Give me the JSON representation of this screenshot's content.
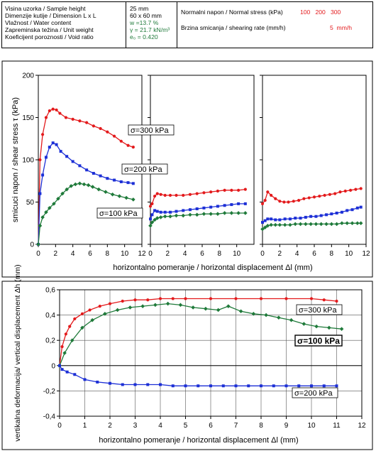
{
  "header": {
    "labels": [
      "Visina uzorka / Sample height",
      "Dimenzije kutije / Dimension L x L",
      "Vlažnost / Water content",
      "Zapreminska težina / Unit weight",
      "Koeficijent poroznosti / Void ratio"
    ],
    "values": [
      "25 mm",
      "60 x 60 mm",
      "w =13.7 %",
      "γ = 21.7 kN/m³",
      "e₀ = 0.420"
    ],
    "normal_stress_label": "Normalni napon / Normal stress (kPa)",
    "normal_stress_values": "100   200   300",
    "shear_rate_label": "Brzina smicanja / shearing rate  (mm/h)",
    "shear_rate_value": "5  mm/h"
  },
  "colors": {
    "s300": "#e31a1c",
    "s200": "#1c2fd6",
    "s100": "#1f7a3a"
  },
  "chart_data": [
    {
      "type": "line",
      "panel": "shear-stress-peak",
      "ylabel": "smicuci napon / shear stress  τ (kPa)",
      "xlabel": "horizontalno pomeranje / horizontal displacement  Δl (mm)",
      "xlim": [
        0,
        12
      ],
      "ylim": [
        0,
        200
      ],
      "xticks": [
        0,
        2,
        4,
        6,
        8,
        10,
        12
      ],
      "yticks": [
        0,
        50,
        100,
        150,
        200
      ],
      "series": [
        {
          "name": "σ=300 kPa",
          "color": "#e31a1c",
          "marker": "circle",
          "x": [
            0,
            0.2,
            0.5,
            0.9,
            1.3,
            1.7,
            2.1,
            2.5,
            3.2,
            4.0,
            4.8,
            5.6,
            6.4,
            7.2,
            8.0,
            8.8,
            9.6,
            10.4,
            11.0
          ],
          "y": [
            0,
            100,
            130,
            150,
            158,
            160,
            159,
            155,
            150,
            148,
            146,
            144,
            140,
            137,
            133,
            128,
            122,
            117,
            115
          ]
        },
        {
          "name": "σ=200 kPa",
          "color": "#1c2fd6",
          "marker": "square",
          "x": [
            0,
            0.2,
            0.5,
            0.9,
            1.3,
            1.7,
            2.1,
            2.6,
            3.3,
            4.0,
            4.8,
            5.6,
            6.4,
            7.2,
            8.0,
            8.8,
            9.6,
            10.4,
            11.0
          ],
          "y": [
            0,
            60,
            82,
            103,
            115,
            120,
            118,
            110,
            104,
            98,
            93,
            88,
            84,
            81,
            78,
            76,
            74,
            73,
            72
          ]
        },
        {
          "name": "σ=100 kPa",
          "color": "#1f7a3a",
          "marker": "diamond",
          "x": [
            0,
            0.2,
            0.5,
            0.9,
            1.3,
            1.8,
            2.3,
            2.8,
            3.3,
            3.8,
            4.3,
            4.8,
            5.3,
            5.8,
            6.3,
            7.0,
            7.8,
            8.6,
            9.4,
            10.2,
            11.0
          ],
          "y": [
            0,
            22,
            32,
            38,
            43,
            48,
            54,
            60,
            65,
            69,
            71,
            72,
            71,
            70,
            68,
            65,
            62,
            59,
            57,
            55,
            53
          ]
        }
      ],
      "annotations": [
        "σ=300 kPa",
        "σ=200 kPa",
        "σ=100 kPa"
      ]
    },
    {
      "type": "line",
      "panel": "shear-stress-middle",
      "xlim": [
        0,
        12
      ],
      "ylim": [
        0,
        200
      ],
      "xticks": [
        0,
        2,
        4,
        6,
        8,
        10
      ],
      "series": [
        {
          "name": "σ=300 kPa",
          "color": "#e31a1c",
          "marker": "circle",
          "x": [
            0,
            0.2,
            0.5,
            0.8,
            1.2,
            1.7,
            2.3,
            3.0,
            3.8,
            4.6,
            5.4,
            6.2,
            7.0,
            7.8,
            8.6,
            9.4,
            10.2,
            11.0
          ],
          "y": [
            45,
            48,
            57,
            60,
            59,
            58,
            58,
            58,
            58,
            59,
            60,
            61,
            62,
            63,
            64,
            64,
            64,
            65
          ]
        },
        {
          "name": "σ=200 kPa",
          "color": "#1c2fd6",
          "marker": "square",
          "x": [
            0,
            0.2,
            0.5,
            0.8,
            1.2,
            1.7,
            2.3,
            3.0,
            3.8,
            4.6,
            5.4,
            6.2,
            7.0,
            7.8,
            8.6,
            9.4,
            10.2,
            11.0
          ],
          "y": [
            30,
            35,
            40,
            39,
            38,
            38,
            38,
            39,
            40,
            41,
            42,
            43,
            44,
            45,
            46,
            47,
            48,
            48
          ]
        },
        {
          "name": "σ=100 kPa",
          "color": "#1f7a3a",
          "marker": "diamond",
          "x": [
            0,
            0.2,
            0.5,
            0.8,
            1.2,
            1.7,
            2.3,
            3.0,
            3.8,
            4.6,
            5.4,
            6.2,
            7.0,
            7.8,
            8.6,
            9.4,
            10.2,
            11.0
          ],
          "y": [
            22,
            26,
            29,
            31,
            32,
            33,
            33,
            34,
            34,
            35,
            35,
            36,
            36,
            36,
            37,
            37,
            37,
            37
          ]
        }
      ]
    },
    {
      "type": "line",
      "panel": "shear-stress-right",
      "xlim": [
        0,
        12
      ],
      "ylim": [
        0,
        200
      ],
      "xticks": [
        0,
        2,
        4,
        6,
        8,
        10,
        12
      ],
      "series": [
        {
          "name": "σ=300 kPa",
          "color": "#e31a1c",
          "marker": "circle",
          "x": [
            0,
            0.3,
            0.6,
            1.0,
            1.5,
            2.0,
            2.5,
            3.0,
            3.6,
            4.2,
            4.8,
            5.4,
            6.0,
            6.6,
            7.2,
            7.8,
            8.4,
            9.0,
            9.6,
            10.2,
            10.8,
            11.4
          ],
          "y": [
            48,
            52,
            62,
            58,
            54,
            51,
            50,
            50,
            51,
            52,
            54,
            55,
            56,
            57,
            58,
            59,
            60,
            62,
            63,
            64,
            65,
            66
          ]
        },
        {
          "name": "σ=200 kPa",
          "color": "#1c2fd6",
          "marker": "square",
          "x": [
            0,
            0.3,
            0.6,
            1.0,
            1.5,
            2.0,
            2.6,
            3.2,
            3.8,
            4.4,
            5.0,
            5.6,
            6.2,
            6.8,
            7.4,
            8.0,
            8.6,
            9.2,
            9.8,
            10.4,
            11.0,
            11.4
          ],
          "y": [
            26,
            28,
            30,
            30,
            29,
            29,
            30,
            30,
            31,
            31,
            32,
            33,
            33,
            34,
            35,
            36,
            37,
            38,
            40,
            41,
            43,
            44
          ]
        },
        {
          "name": "σ=100 kPa",
          "color": "#1f7a3a",
          "marker": "diamond",
          "x": [
            0,
            0.3,
            0.6,
            1.0,
            1.5,
            2.0,
            2.6,
            3.2,
            3.8,
            4.4,
            5.0,
            5.6,
            6.2,
            6.8,
            7.4,
            8.0,
            8.6,
            9.2,
            9.8,
            10.4,
            11.0,
            11.4
          ],
          "y": [
            18,
            20,
            22,
            23,
            23,
            23,
            23,
            23,
            24,
            24,
            24,
            24,
            24,
            24,
            24,
            24,
            24,
            25,
            25,
            25,
            25,
            25
          ]
        }
      ]
    },
    {
      "type": "line",
      "panel": "vertical-displacement",
      "ylabel": "vertikalna deformacija/ vertical displacement  Δh (mm)",
      "xlabel": "horizontalno pomeranje / horizontal displacement  Δl (mm)",
      "xlim": [
        0,
        12
      ],
      "ylim": [
        -0.4,
        0.6
      ],
      "xticks": [
        0,
        1,
        2,
        3,
        4,
        5,
        6,
        7,
        8,
        9,
        10,
        11,
        12
      ],
      "yticks": [
        -0.4,
        -0.2,
        0,
        0.2,
        0.4,
        0.6
      ],
      "yticklabels": [
        "-0,4",
        "-0,2",
        "0",
        "0,2",
        "0,4",
        "0,6"
      ],
      "series": [
        {
          "name": "σ=300 kPa",
          "color": "#e31a1c",
          "marker": "circle",
          "x": [
            0,
            0.1,
            0.25,
            0.4,
            0.6,
            0.9,
            1.2,
            1.6,
            2.0,
            2.5,
            3.0,
            3.5,
            4.0,
            4.5,
            5.0,
            6.0,
            7.0,
            8.0,
            9.0,
            10.0,
            10.5,
            11.0
          ],
          "y": [
            0,
            0.15,
            0.25,
            0.31,
            0.37,
            0.41,
            0.44,
            0.47,
            0.49,
            0.51,
            0.52,
            0.52,
            0.53,
            0.53,
            0.53,
            0.53,
            0.53,
            0.53,
            0.53,
            0.53,
            0.52,
            0.51
          ]
        },
        {
          "name": "σ=100 kPa",
          "color": "#1f7a3a",
          "marker": "diamond",
          "x": [
            0,
            0.2,
            0.5,
            0.9,
            1.3,
            1.8,
            2.3,
            2.8,
            3.3,
            3.8,
            4.3,
            4.8,
            5.3,
            5.8,
            6.3,
            6.7,
            7.2,
            7.7,
            8.2,
            8.7,
            9.2,
            9.7,
            10.2,
            10.7,
            11.2
          ],
          "y": [
            0,
            0.1,
            0.2,
            0.3,
            0.36,
            0.41,
            0.44,
            0.46,
            0.47,
            0.48,
            0.49,
            0.48,
            0.46,
            0.45,
            0.44,
            0.47,
            0.43,
            0.41,
            0.4,
            0.38,
            0.36,
            0.33,
            0.31,
            0.3,
            0.29
          ]
        },
        {
          "name": "σ=200 kPa",
          "color": "#1c2fd6",
          "marker": "square",
          "x": [
            0,
            0.1,
            0.3,
            0.6,
            1.0,
            1.5,
            2.0,
            2.5,
            3.0,
            3.5,
            4.0,
            4.5,
            5.0,
            5.5,
            6.0,
            6.5,
            7.0,
            7.5,
            8.0,
            8.5,
            9.0,
            9.5,
            10.0,
            10.5,
            11.0
          ],
          "y": [
            0,
            -0.03,
            -0.05,
            -0.07,
            -0.11,
            -0.13,
            -0.14,
            -0.15,
            -0.15,
            -0.15,
            -0.15,
            -0.16,
            -0.16,
            -0.16,
            -0.16,
            -0.16,
            -0.16,
            -0.16,
            -0.16,
            -0.16,
            -0.16,
            -0.16,
            -0.16,
            -0.16,
            -0.16
          ]
        }
      ],
      "annotations": [
        "σ=300 kPa",
        "σ=100 kPa",
        "σ=200 kPa"
      ]
    }
  ]
}
